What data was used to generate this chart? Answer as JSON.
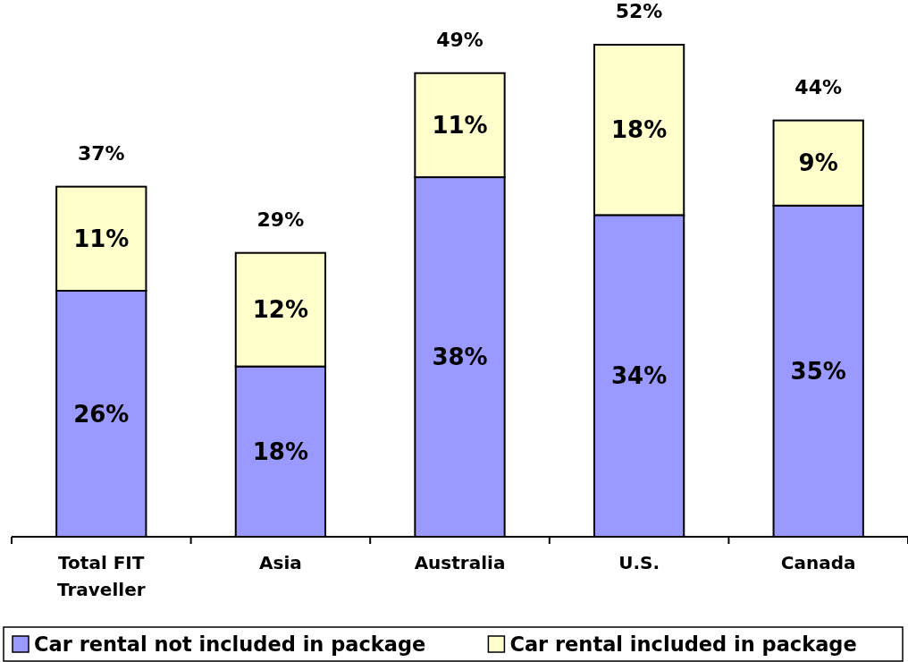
{
  "chart_data": {
    "type": "bar",
    "stacked": true,
    "categories": [
      "Total FIT Traveller",
      "Asia",
      "Australia",
      "U.S.",
      "Canada"
    ],
    "series": [
      {
        "name": "Car rental not included in package",
        "color": "#9999ff",
        "values": [
          26,
          18,
          38,
          34,
          35
        ],
        "value_labels": [
          "26%",
          "18%",
          "38%",
          "34%",
          "35%"
        ]
      },
      {
        "name": "Car rental included in package",
        "color": "#ffffcc",
        "values": [
          11,
          12,
          11,
          18,
          9
        ],
        "value_labels": [
          "11%",
          "12%",
          "11%",
          "18%",
          "9%"
        ]
      }
    ],
    "totals": [
      "37%",
      "29%",
      "49%",
      "52%",
      "44%"
    ],
    "legend": "bottom"
  }
}
